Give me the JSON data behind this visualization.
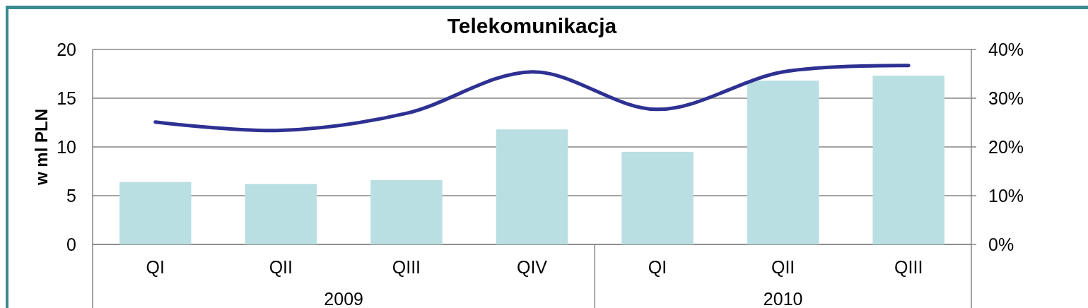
{
  "chart_data": {
    "type": "bar",
    "title": "Telekomunikacja",
    "ylabel": "w ml PLN",
    "categories": [
      "QI",
      "QII",
      "QIII",
      "QIV",
      "QI",
      "QII",
      "QIII"
    ],
    "annotations": [
      "2009",
      "2010"
    ],
    "series": [
      {
        "color": "#b9dfe2",
        "values": [
          6.4,
          6.2,
          6.6,
          11.8,
          9.5,
          16.8,
          17.3
        ]
      },
      {
        "type": "line",
        "axis": "y2",
        "color": "#2e3192",
        "values": [
          25.1,
          23.4,
          26.9,
          35.4,
          27.7,
          35.4,
          36.7
        ]
      }
    ],
    "ylim": [
      0,
      20
    ],
    "yticks": [
      0,
      5,
      10,
      15,
      20
    ],
    "y2lim": [
      0,
      40
    ],
    "y2ticks": [
      {
        "value": 0,
        "label": "0%"
      },
      {
        "value": 10,
        "label": "10%"
      },
      {
        "value": 20,
        "label": "20%"
      },
      {
        "value": 30,
        "label": "30%"
      },
      {
        "value": 40,
        "label": "40%"
      }
    ],
    "grid": "y"
  }
}
